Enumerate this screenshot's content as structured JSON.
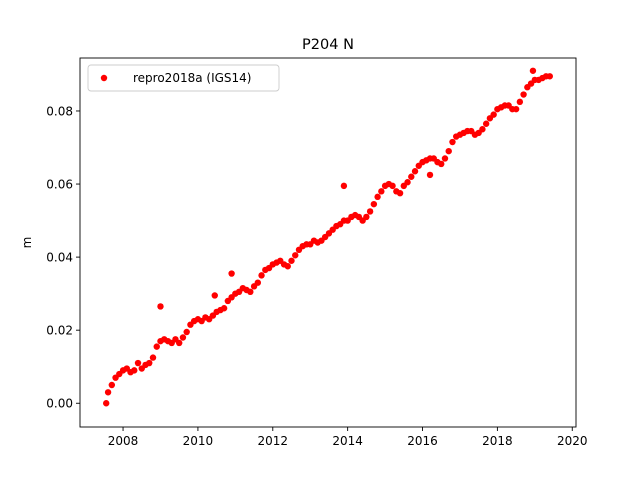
{
  "chart_data": {
    "type": "scatter",
    "title": "P204 N",
    "xlabel": "",
    "ylabel": "m",
    "xlim": [
      2006.85,
      2020.1
    ],
    "ylim": [
      -0.0065,
      0.0945
    ],
    "xticks": [
      2008,
      2010,
      2012,
      2014,
      2016,
      2018,
      2020
    ],
    "xtick_labels": [
      "2008",
      "2010",
      "2012",
      "2014",
      "2016",
      "2018",
      "2020"
    ],
    "yticks": [
      0.0,
      0.02,
      0.04,
      0.06,
      0.08
    ],
    "ytick_labels": [
      "0.00",
      "0.02",
      "0.04",
      "0.06",
      "0.08"
    ],
    "grid": false,
    "legend": {
      "placement": "top-left",
      "entries": [
        "repro2018a (IGS14)"
      ]
    },
    "series": [
      {
        "name": "repro2018a (IGS14)",
        "color": "#ff0000",
        "marker": "circle",
        "x": [
          2007.55,
          2007.6,
          2007.7,
          2007.8,
          2007.9,
          2008.0,
          2008.1,
          2008.2,
          2008.3,
          2008.4,
          2008.5,
          2008.6,
          2008.7,
          2008.8,
          2008.9,
          2009.0,
          2009.1,
          2009.2,
          2009.3,
          2009.4,
          2009.5,
          2009.6,
          2009.7,
          2009.8,
          2009.9,
          2010.0,
          2010.1,
          2010.2,
          2010.3,
          2010.4,
          2010.5,
          2010.6,
          2010.7,
          2010.8,
          2010.9,
          2011.0,
          2011.1,
          2011.2,
          2011.3,
          2011.4,
          2011.5,
          2011.6,
          2011.7,
          2011.8,
          2011.9,
          2012.0,
          2012.1,
          2012.2,
          2012.3,
          2012.4,
          2012.5,
          2012.6,
          2012.7,
          2012.8,
          2012.9,
          2013.0,
          2013.1,
          2013.2,
          2013.3,
          2013.4,
          2013.5,
          2013.6,
          2013.7,
          2013.8,
          2013.9,
          2014.0,
          2014.1,
          2014.2,
          2014.3,
          2014.4,
          2014.5,
          2014.6,
          2014.7,
          2014.8,
          2014.9,
          2015.0,
          2015.1,
          2015.2,
          2015.3,
          2015.4,
          2015.5,
          2015.6,
          2015.7,
          2015.8,
          2015.9,
          2016.0,
          2016.1,
          2016.2,
          2016.3,
          2016.4,
          2016.5,
          2016.6,
          2016.7,
          2016.8,
          2016.9,
          2017.0,
          2017.1,
          2017.2,
          2017.3,
          2017.4,
          2017.5,
          2017.6,
          2017.7,
          2017.8,
          2017.9,
          2018.0,
          2018.1,
          2018.2,
          2018.3,
          2018.4,
          2018.5,
          2018.6,
          2018.7,
          2018.8,
          2018.9,
          2019.0,
          2019.1,
          2019.2,
          2019.3,
          2019.4,
          2009.0,
          2010.9,
          2010.45,
          2013.9,
          2016.2,
          2018.95
        ],
        "y": [
          0.0,
          0.003,
          0.005,
          0.007,
          0.008,
          0.009,
          0.0095,
          0.0085,
          0.009,
          0.011,
          0.0095,
          0.0105,
          0.011,
          0.0125,
          0.0155,
          0.017,
          0.0175,
          0.017,
          0.0165,
          0.0175,
          0.0165,
          0.018,
          0.0195,
          0.0215,
          0.0225,
          0.023,
          0.0225,
          0.0235,
          0.023,
          0.024,
          0.025,
          0.0255,
          0.026,
          0.028,
          0.029,
          0.03,
          0.0305,
          0.0315,
          0.031,
          0.0305,
          0.032,
          0.033,
          0.035,
          0.0365,
          0.037,
          0.038,
          0.0385,
          0.039,
          0.038,
          0.0375,
          0.039,
          0.0405,
          0.042,
          0.043,
          0.0435,
          0.0435,
          0.0445,
          0.044,
          0.0445,
          0.0455,
          0.0465,
          0.0475,
          0.0485,
          0.049,
          0.05,
          0.05,
          0.051,
          0.0515,
          0.051,
          0.05,
          0.051,
          0.0525,
          0.0545,
          0.0565,
          0.058,
          0.0595,
          0.06,
          0.0595,
          0.058,
          0.0575,
          0.0595,
          0.0605,
          0.062,
          0.0635,
          0.065,
          0.066,
          0.0665,
          0.067,
          0.067,
          0.066,
          0.0655,
          0.067,
          0.069,
          0.0715,
          0.073,
          0.0735,
          0.074,
          0.0745,
          0.0745,
          0.0735,
          0.074,
          0.075,
          0.0765,
          0.078,
          0.079,
          0.0805,
          0.081,
          0.0815,
          0.0815,
          0.0805,
          0.0805,
          0.0825,
          0.0845,
          0.0865,
          0.0875,
          0.0885,
          0.0885,
          0.089,
          0.0895,
          0.0895,
          0.0265,
          0.0355,
          0.0295,
          0.0595,
          0.0625,
          0.091
        ]
      }
    ]
  }
}
